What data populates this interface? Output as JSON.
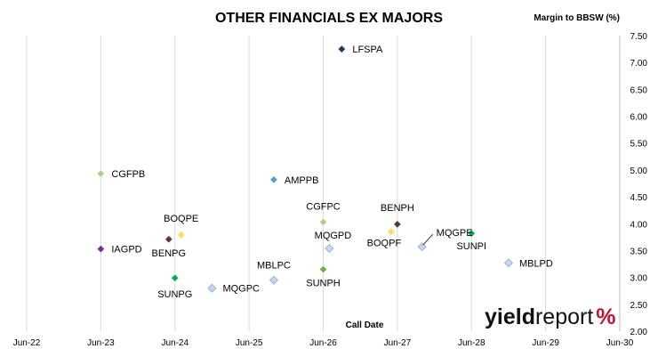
{
  "chart_data": {
    "type": "scatter",
    "title": "OTHER FINANCIALS EX MAJORS",
    "xlabel": "Call Date",
    "ylabel": "Margin to BBSW (%)",
    "x_ticks": [
      "Jun-22",
      "Jun-23",
      "Jun-24",
      "Jun-25",
      "Jun-26",
      "Jun-27",
      "Jun-28",
      "Jun-29",
      "Jun-30"
    ],
    "y_ticks": [
      "2.00",
      "2.50",
      "3.00",
      "3.50",
      "4.00",
      "4.50",
      "5.00",
      "5.50",
      "6.00",
      "6.50",
      "7.00",
      "7.50"
    ],
    "xlim": [
      "Jun-22",
      "Jun-30"
    ],
    "ylim": [
      2.0,
      7.5
    ],
    "grid": "vertical",
    "points": [
      {
        "name": "LFSPA",
        "x": "2026-09",
        "y": 7.25,
        "color": "#1f3864"
      },
      {
        "name": "CGFPB",
        "x": "2023-06",
        "y": 4.93,
        "color": "#a9d18e"
      },
      {
        "name": "AMPPB",
        "x": "2025-10",
        "y": 4.82,
        "color": "#5b9bd5"
      },
      {
        "name": "CGFPC",
        "x": "2026-06",
        "y": 4.03,
        "color": "#a9d18e"
      },
      {
        "name": "BENPH",
        "x": "2027-06",
        "y": 3.99,
        "color": "#5a3a2a"
      },
      {
        "name": "MQGPE",
        "x": "2027-10",
        "y": 3.57,
        "color": "#c5d6ee"
      },
      {
        "name": "BOQPF",
        "x": "2027-05",
        "y": 3.85,
        "color": "#ffd966"
      },
      {
        "name": "SUNPI",
        "x": "2028-06",
        "y": 3.82,
        "color": "#00b050"
      },
      {
        "name": "MQGPD",
        "x": "2026-07",
        "y": 3.54,
        "color": "#c5d6ee"
      },
      {
        "name": "MBLPD",
        "x": "2028-12",
        "y": 3.27,
        "color": "#c5d6ee"
      },
      {
        "name": "IAGPD",
        "x": "2023-06",
        "y": 3.53,
        "color": "#7030a0"
      },
      {
        "name": "BOQPE",
        "x": "2024-07",
        "y": 3.79,
        "color": "#ffd966"
      },
      {
        "name": "BENPG",
        "x": "2024-05",
        "y": 3.71,
        "color": "#5a3a2a"
      },
      {
        "name": "MBLPC",
        "x": "2025-10",
        "y": 2.95,
        "color": "#c5d6ee"
      },
      {
        "name": "SUNPH",
        "x": "2026-06",
        "y": 3.15,
        "color": "#70ad47"
      },
      {
        "name": "SUNPG",
        "x": "2024-06",
        "y": 2.99,
        "color": "#00b050"
      },
      {
        "name": "MQGPC",
        "x": "2024-12",
        "y": 2.8,
        "color": "#c5d6ee"
      }
    ]
  },
  "logo": {
    "part1": "yield",
    "part2": "report",
    "part3": "%"
  }
}
